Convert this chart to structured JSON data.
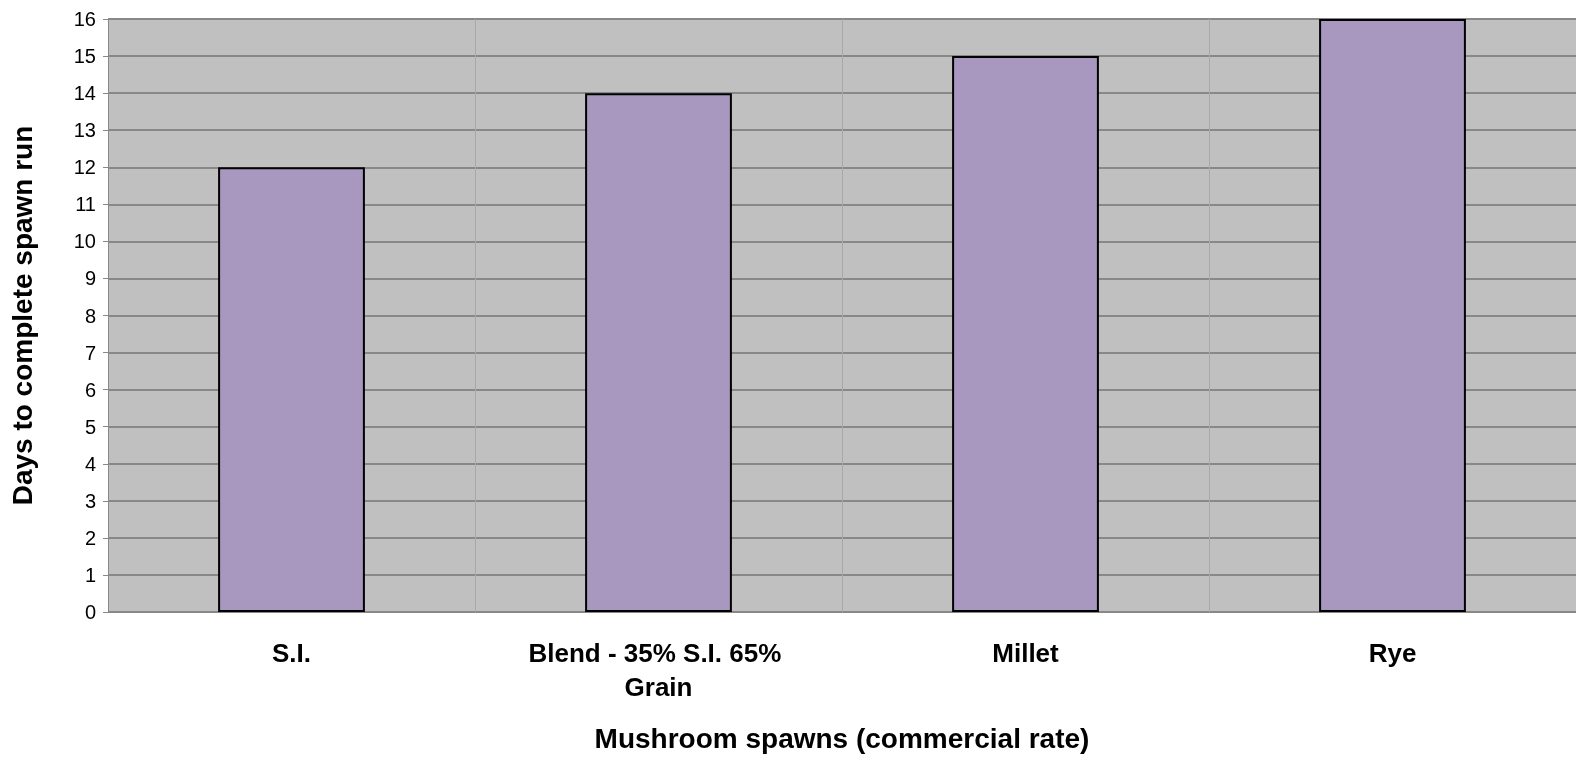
{
  "chart_data": {
    "type": "bar",
    "xlabel": "Mushroom spawns (commercial rate)",
    "ylabel": "Days to complete spawn run",
    "categories": [
      "S.I.",
      "Blend - 35% S.I. 65% Grain",
      "Millet",
      "Rye"
    ],
    "values": [
      12,
      14,
      15,
      16
    ],
    "color": "#a898c0",
    "ylim": [
      0,
      16
    ],
    "yticks": [
      0,
      1,
      2,
      3,
      4,
      5,
      6,
      7,
      8,
      9,
      10,
      11,
      12,
      13,
      14,
      15,
      16
    ],
    "grid": true
  }
}
